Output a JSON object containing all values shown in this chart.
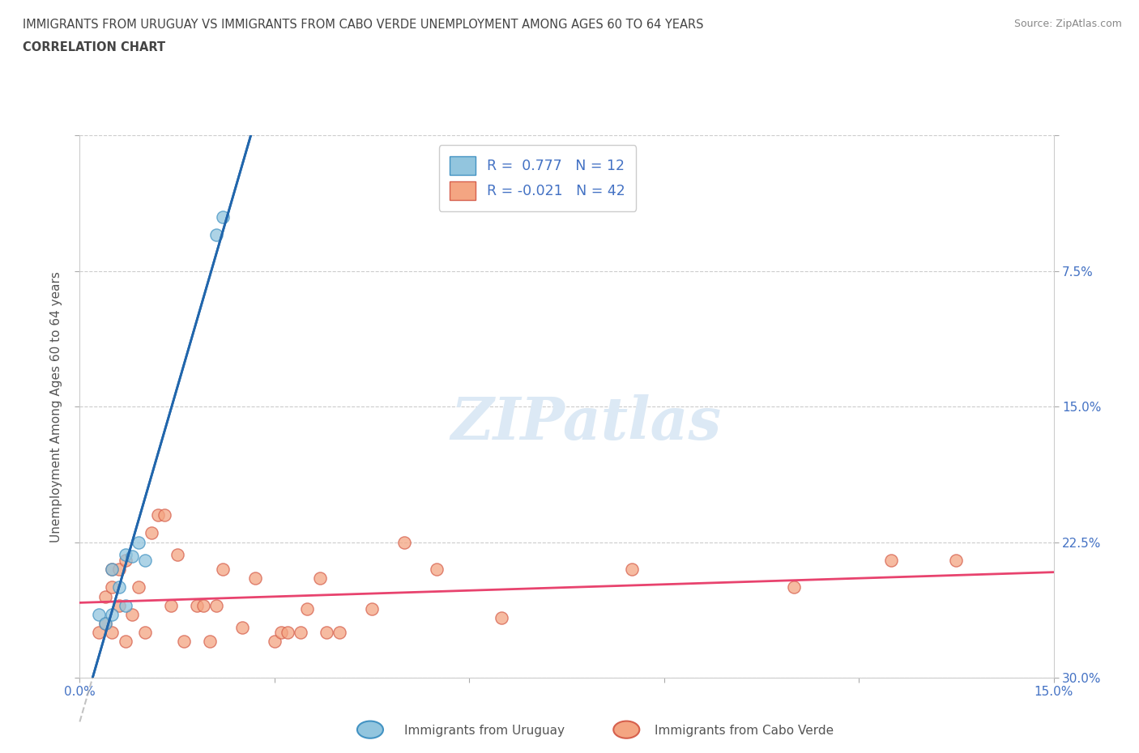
{
  "title_line1": "IMMIGRANTS FROM URUGUAY VS IMMIGRANTS FROM CABO VERDE UNEMPLOYMENT AMONG AGES 60 TO 64 YEARS",
  "title_line2": "CORRELATION CHART",
  "source_text": "Source: ZipAtlas.com",
  "ylabel": "Unemployment Among Ages 60 to 64 years",
  "xlim": [
    0.0,
    0.15
  ],
  "ylim": [
    0.0,
    0.3
  ],
  "yticks": [
    0.0,
    0.075,
    0.15,
    0.225,
    0.3
  ],
  "xticks": [
    0.0,
    0.03,
    0.06,
    0.09,
    0.12,
    0.15
  ],
  "right_ytick_labels": [
    "30.0%",
    "22.5%",
    "15.0%",
    "7.5%",
    ""
  ],
  "uruguay_color": "#92c5de",
  "uruguay_edge_color": "#4393c3",
  "cabo_verde_color": "#f4a582",
  "cabo_verde_edge_color": "#d6604d",
  "uruguay_line_color": "#2166ac",
  "cabo_verde_line_color": "#e8436e",
  "tick_label_color": "#4472c4",
  "watermark": "ZIPatlas",
  "watermark_color": "#dce9f5",
  "background_color": "#ffffff",
  "uruguay_points_x": [
    0.003,
    0.004,
    0.005,
    0.005,
    0.006,
    0.007,
    0.007,
    0.008,
    0.009,
    0.01,
    0.021,
    0.022
  ],
  "uruguay_points_y": [
    0.035,
    0.03,
    0.035,
    0.06,
    0.05,
    0.068,
    0.04,
    0.067,
    0.075,
    0.065,
    0.245,
    0.255
  ],
  "cabo_verde_points_x": [
    0.003,
    0.004,
    0.004,
    0.005,
    0.005,
    0.005,
    0.006,
    0.006,
    0.007,
    0.007,
    0.008,
    0.009,
    0.01,
    0.011,
    0.012,
    0.013,
    0.014,
    0.015,
    0.016,
    0.018,
    0.019,
    0.02,
    0.021,
    0.022,
    0.025,
    0.027,
    0.03,
    0.031,
    0.032,
    0.034,
    0.035,
    0.037,
    0.038,
    0.04,
    0.045,
    0.05,
    0.055,
    0.065,
    0.085,
    0.11,
    0.125,
    0.135
  ],
  "cabo_verde_points_y": [
    0.025,
    0.03,
    0.045,
    0.025,
    0.05,
    0.06,
    0.04,
    0.06,
    0.02,
    0.065,
    0.035,
    0.05,
    0.025,
    0.08,
    0.09,
    0.09,
    0.04,
    0.068,
    0.02,
    0.04,
    0.04,
    0.02,
    0.04,
    0.06,
    0.028,
    0.055,
    0.02,
    0.025,
    0.025,
    0.025,
    0.038,
    0.055,
    0.025,
    0.025,
    0.038,
    0.075,
    0.06,
    0.033,
    0.06,
    0.05,
    0.065,
    0.065
  ]
}
